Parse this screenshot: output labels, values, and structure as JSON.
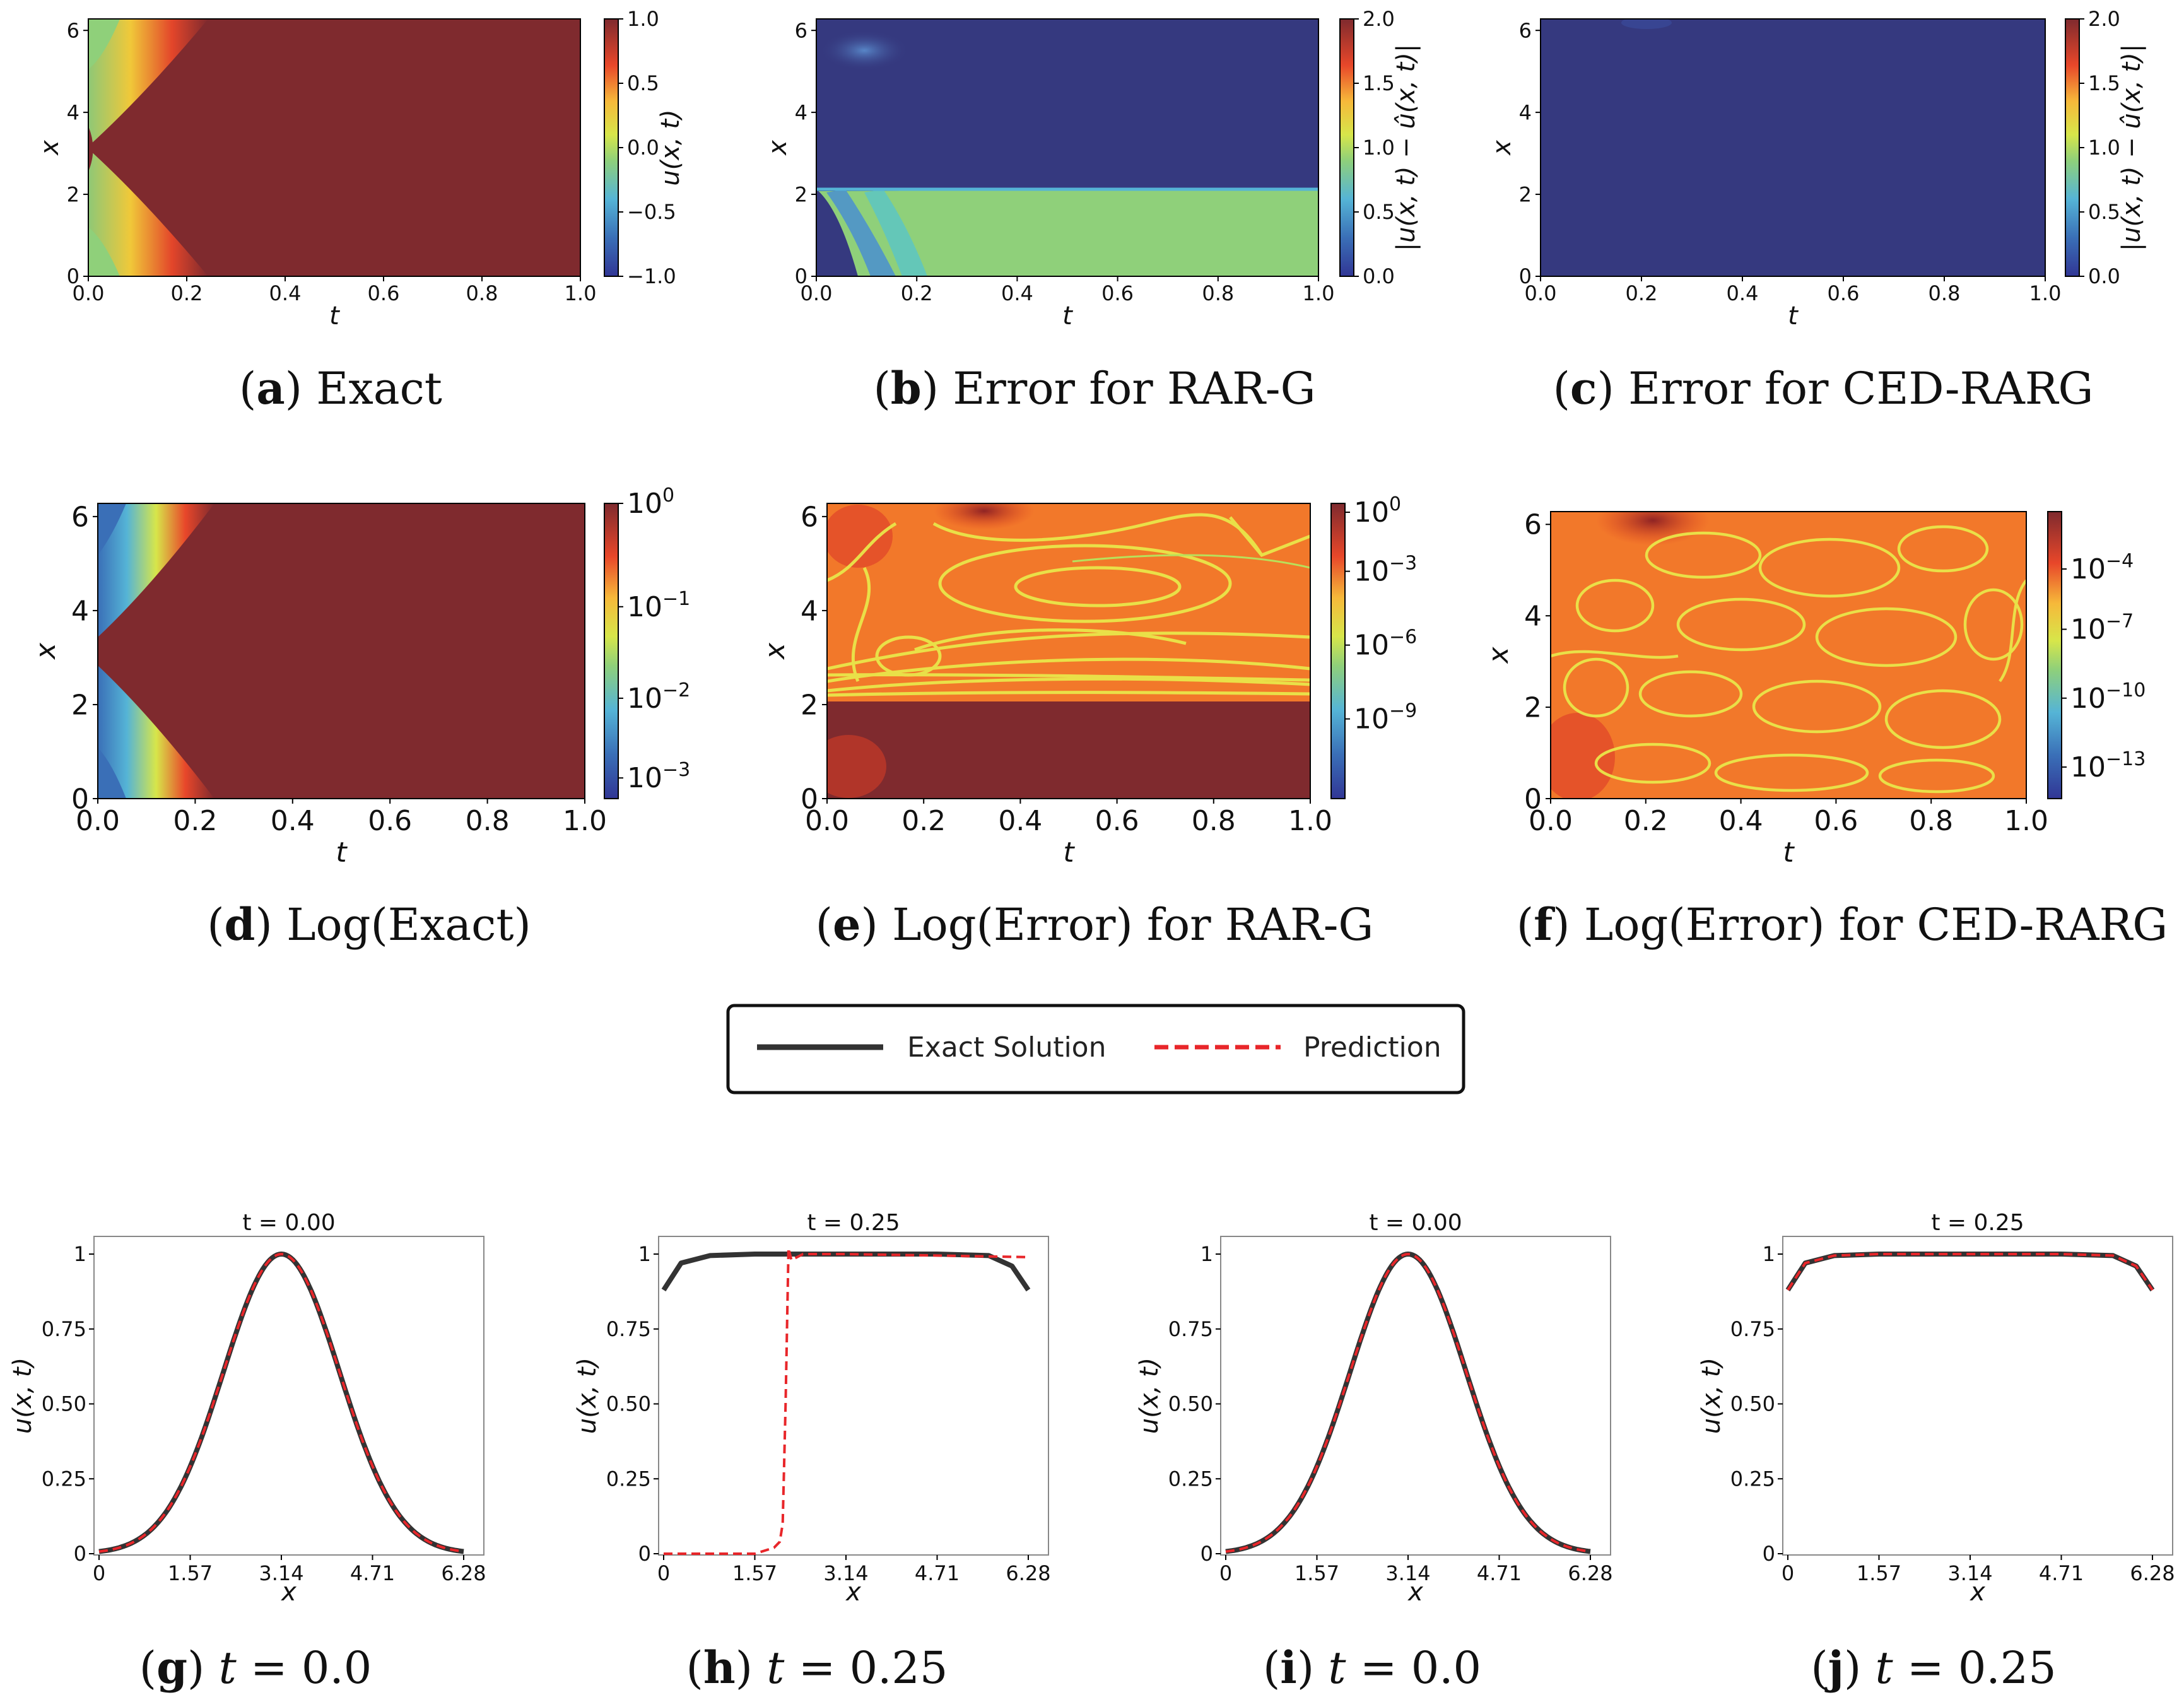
{
  "chart_data": [
    {
      "id": "a",
      "type": "heatmap",
      "title": "",
      "xlabel": "t",
      "ylabel": "x",
      "xlim": [
        0,
        1
      ],
      "ylim": [
        0,
        6.28
      ],
      "xticks": [
        "0.0",
        "0.2",
        "0.4",
        "0.6",
        "0.8",
        "1.0"
      ],
      "yticks": [
        "0",
        "2",
        "4",
        "6"
      ],
      "colorbar": {
        "label": "u(x, t)",
        "scale": "linear",
        "range": [
          -1,
          1
        ],
        "ticks": [
          "1.0",
          "0.5",
          "0.0",
          "−0.5",
          "−1.0"
        ]
      },
      "caption": {
        "letter": "a",
        "text": "Exact"
      }
    },
    {
      "id": "b",
      "type": "heatmap",
      "xlabel": "t",
      "ylabel": "x",
      "xlim": [
        0,
        1
      ],
      "ylim": [
        0,
        6.28
      ],
      "xticks": [
        "0.0",
        "0.2",
        "0.4",
        "0.6",
        "0.8",
        "1.0"
      ],
      "yticks": [
        "0",
        "2",
        "4",
        "6"
      ],
      "colorbar": {
        "label": "|u(x, t) − û(x, t)|",
        "scale": "linear",
        "range": [
          0,
          2
        ],
        "ticks": [
          "2.0",
          "1.5",
          "1.0",
          "0.5",
          "0.0"
        ]
      },
      "caption": {
        "letter": "b",
        "text": "Error for RAR-G"
      }
    },
    {
      "id": "c",
      "type": "heatmap",
      "xlabel": "t",
      "ylabel": "x",
      "xlim": [
        0,
        1
      ],
      "ylim": [
        0,
        6.28
      ],
      "xticks": [
        "0.0",
        "0.2",
        "0.4",
        "0.6",
        "0.8",
        "1.0"
      ],
      "yticks": [
        "0",
        "2",
        "4",
        "6"
      ],
      "colorbar": {
        "label": "|u(x, t) − û(x, t)|",
        "scale": "linear",
        "range": [
          0,
          2
        ],
        "ticks": [
          "2.0",
          "1.5",
          "1.0",
          "0.5",
          "0.0"
        ]
      },
      "caption": {
        "letter": "c",
        "text": "Error for CED-RARG"
      }
    },
    {
      "id": "d",
      "type": "heatmap",
      "xlabel": "t",
      "ylabel": "x",
      "xlim": [
        0,
        1
      ],
      "ylim": [
        0,
        6.28
      ],
      "xticks": [
        "0.0",
        "0.2",
        "0.4",
        "0.6",
        "0.8",
        "1.0"
      ],
      "yticks": [
        "0",
        "2",
        "4",
        "6"
      ],
      "colorbar": {
        "label": "",
        "scale": "log",
        "ticks": [
          {
            "base": "10",
            "exp": "0"
          },
          {
            "base": "10",
            "exp": "−1"
          },
          {
            "base": "10",
            "exp": "−2"
          },
          {
            "base": "10",
            "exp": "−3"
          }
        ]
      },
      "caption": {
        "letter": "d",
        "text": "Log(Exact)"
      }
    },
    {
      "id": "e",
      "type": "heatmap",
      "xlabel": "t",
      "ylabel": "x",
      "xlim": [
        0,
        1
      ],
      "ylim": [
        0,
        6.28
      ],
      "xticks": [
        "0.0",
        "0.2",
        "0.4",
        "0.6",
        "0.8",
        "1.0"
      ],
      "yticks": [
        "0",
        "2",
        "4",
        "6"
      ],
      "colorbar": {
        "label": "",
        "scale": "log",
        "ticks": [
          {
            "base": "10",
            "exp": "0"
          },
          {
            "base": "10",
            "exp": "−3"
          },
          {
            "base": "10",
            "exp": "−6"
          },
          {
            "base": "10",
            "exp": "−9"
          }
        ]
      },
      "caption": {
        "letter": "e",
        "text": "Log(Error) for RAR-G"
      }
    },
    {
      "id": "f",
      "type": "heatmap",
      "xlabel": "t",
      "ylabel": "x",
      "xlim": [
        0,
        1
      ],
      "ylim": [
        0,
        6.28
      ],
      "xticks": [
        "0.0",
        "0.2",
        "0.4",
        "0.6",
        "0.8",
        "1.0"
      ],
      "yticks": [
        "0",
        "2",
        "4",
        "6"
      ],
      "colorbar": {
        "label": "",
        "scale": "log",
        "ticks": [
          {
            "base": "10",
            "exp": "−4"
          },
          {
            "base": "10",
            "exp": "−7"
          },
          {
            "base": "10",
            "exp": "−10"
          },
          {
            "base": "10",
            "exp": "−13"
          }
        ]
      },
      "caption": {
        "letter": "f",
        "text": "Log(Error) for CED-RARG"
      }
    },
    {
      "id": "g",
      "type": "line",
      "title": "t = 0.00",
      "xlabel": "x",
      "ylabel": "u(x, t)",
      "xlim": [
        0,
        6.28
      ],
      "ylim": [
        0,
        1
      ],
      "xticks": [
        "0",
        "1.57",
        "3.14",
        "4.71",
        "6.28"
      ],
      "yticks": [
        "0",
        "0.25",
        "0.50",
        "0.75",
        "1"
      ],
      "series": [
        {
          "name": "Exact Solution",
          "function": "exp(-(x-π)²/2)"
        },
        {
          "name": "Prediction",
          "function": "exp(-(x-π)²/2)"
        }
      ],
      "caption": {
        "letter": "g",
        "var": "t",
        "value": "= 0.0"
      }
    },
    {
      "id": "h",
      "type": "line",
      "title": "t = 0.25",
      "xlabel": "x",
      "ylabel": "u(x, t)",
      "xlim": [
        0,
        6.28
      ],
      "ylim": [
        0,
        1
      ],
      "xticks": [
        "0",
        "1.57",
        "3.14",
        "4.71",
        "6.28"
      ],
      "yticks": [
        "0",
        "0.25",
        "0.50",
        "0.75",
        "1"
      ],
      "series": [
        {
          "name": "Exact Solution",
          "x": [
            0,
            0.3,
            0.8,
            1.57,
            3.14,
            4.71,
            5.6,
            6.0,
            6.28
          ],
          "y": [
            0.88,
            0.97,
            0.995,
            1,
            1,
            1,
            0.995,
            0.96,
            0.88
          ]
        },
        {
          "name": "Prediction",
          "x": [
            0,
            1.57,
            1.9,
            2.0,
            2.05,
            2.1,
            2.15,
            2.2,
            2.4,
            3.14,
            4.71,
            6.28
          ],
          "y": [
            0,
            0,
            0.02,
            0.04,
            0.1,
            0.5,
            1.02,
            0.98,
            1.0,
            1.0,
            0.995,
            0.99
          ]
        }
      ],
      "caption": {
        "letter": "h",
        "var": "t",
        "value": "= 0.25"
      }
    },
    {
      "id": "i",
      "type": "line",
      "title": "t = 0.00",
      "xlabel": "x",
      "ylabel": "u(x, t)",
      "xlim": [
        0,
        6.28
      ],
      "ylim": [
        0,
        1
      ],
      "xticks": [
        "0",
        "1.57",
        "3.14",
        "4.71",
        "6.28"
      ],
      "yticks": [
        "0",
        "0.25",
        "0.50",
        "0.75",
        "1"
      ],
      "series": [
        {
          "name": "Exact Solution",
          "function": "exp(-(x-π)²/2)"
        },
        {
          "name": "Prediction",
          "function": "exp(-(x-π)²/2)"
        }
      ],
      "caption": {
        "letter": "i",
        "var": "t",
        "value": "= 0.0"
      }
    },
    {
      "id": "j",
      "type": "line",
      "title": "t = 0.25",
      "xlabel": "x",
      "ylabel": "u(x, t)",
      "xlim": [
        0,
        6.28
      ],
      "ylim": [
        0,
        1
      ],
      "xticks": [
        "0",
        "1.57",
        "3.14",
        "4.71",
        "6.28"
      ],
      "yticks": [
        "0",
        "0.25",
        "0.50",
        "0.75",
        "1"
      ],
      "series": [
        {
          "name": "Exact Solution",
          "x": [
            0,
            0.3,
            0.8,
            1.57,
            3.14,
            4.71,
            5.6,
            6.0,
            6.28
          ],
          "y": [
            0.88,
            0.97,
            0.995,
            1,
            1,
            1,
            0.995,
            0.96,
            0.88
          ]
        },
        {
          "name": "Prediction",
          "x": [
            0,
            0.3,
            0.8,
            1.57,
            3.14,
            4.71,
            5.6,
            6.0,
            6.28
          ],
          "y": [
            0.88,
            0.97,
            0.995,
            1,
            1,
            1,
            0.995,
            0.96,
            0.88
          ]
        }
      ],
      "caption": {
        "letter": "j",
        "var": "t",
        "value": "= 0.25"
      }
    }
  ],
  "legend": {
    "items": [
      {
        "label": "Exact Solution",
        "color": "#333333",
        "style": "solid"
      },
      {
        "label": "Prediction",
        "color": "#e8262a",
        "style": "dashed"
      }
    ]
  }
}
